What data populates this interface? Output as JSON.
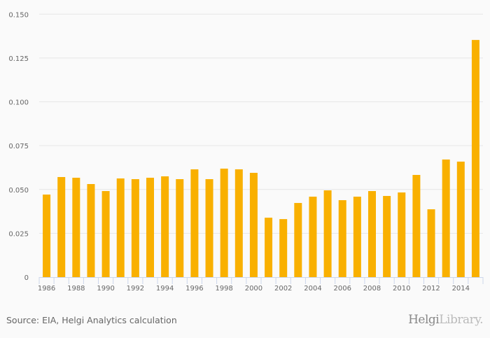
{
  "chart_data": {
    "type": "bar",
    "title": "",
    "xlabel": "",
    "ylabel": "",
    "ylim": [
      0,
      0.15
    ],
    "yticks": [
      "0",
      "0.025",
      "0.050",
      "0.075",
      "0.100",
      "0.125",
      "0.150"
    ],
    "ytick_values": [
      0,
      0.025,
      0.05,
      0.075,
      0.1,
      0.125,
      0.15
    ],
    "grid": true,
    "bar_color": "#f9b000",
    "categories": [
      "1986",
      "1987",
      "1988",
      "1989",
      "1990",
      "1991",
      "1992",
      "1993",
      "1994",
      "1995",
      "1996",
      "1997",
      "1998",
      "1999",
      "2000",
      "2001",
      "2002",
      "2003",
      "2004",
      "2005",
      "2006",
      "2007",
      "2008",
      "2009",
      "2010",
      "2011",
      "2012",
      "2013",
      "2014",
      "2015"
    ],
    "xtick_labels": [
      "1986",
      "1988",
      "1990",
      "1992",
      "1994",
      "1996",
      "1998",
      "2000",
      "2002",
      "2004",
      "2006",
      "2008",
      "2010",
      "2012",
      "2014"
    ],
    "values": [
      0.0471,
      0.0571,
      0.0567,
      0.0531,
      0.0491,
      0.0563,
      0.0559,
      0.0567,
      0.0575,
      0.0559,
      0.0615,
      0.0559,
      0.0619,
      0.0615,
      0.0595,
      0.0339,
      0.0331,
      0.0423,
      0.0459,
      0.0495,
      0.0439,
      0.0459,
      0.0491,
      0.0463,
      0.0483,
      0.0583,
      0.0387,
      0.0671,
      0.0659,
      0.1353
    ]
  },
  "footer": {
    "source": "Source: EIA, Helgi Analytics calculation",
    "logo_text_main": "Helgi",
    "logo_text_sub": "Library."
  }
}
